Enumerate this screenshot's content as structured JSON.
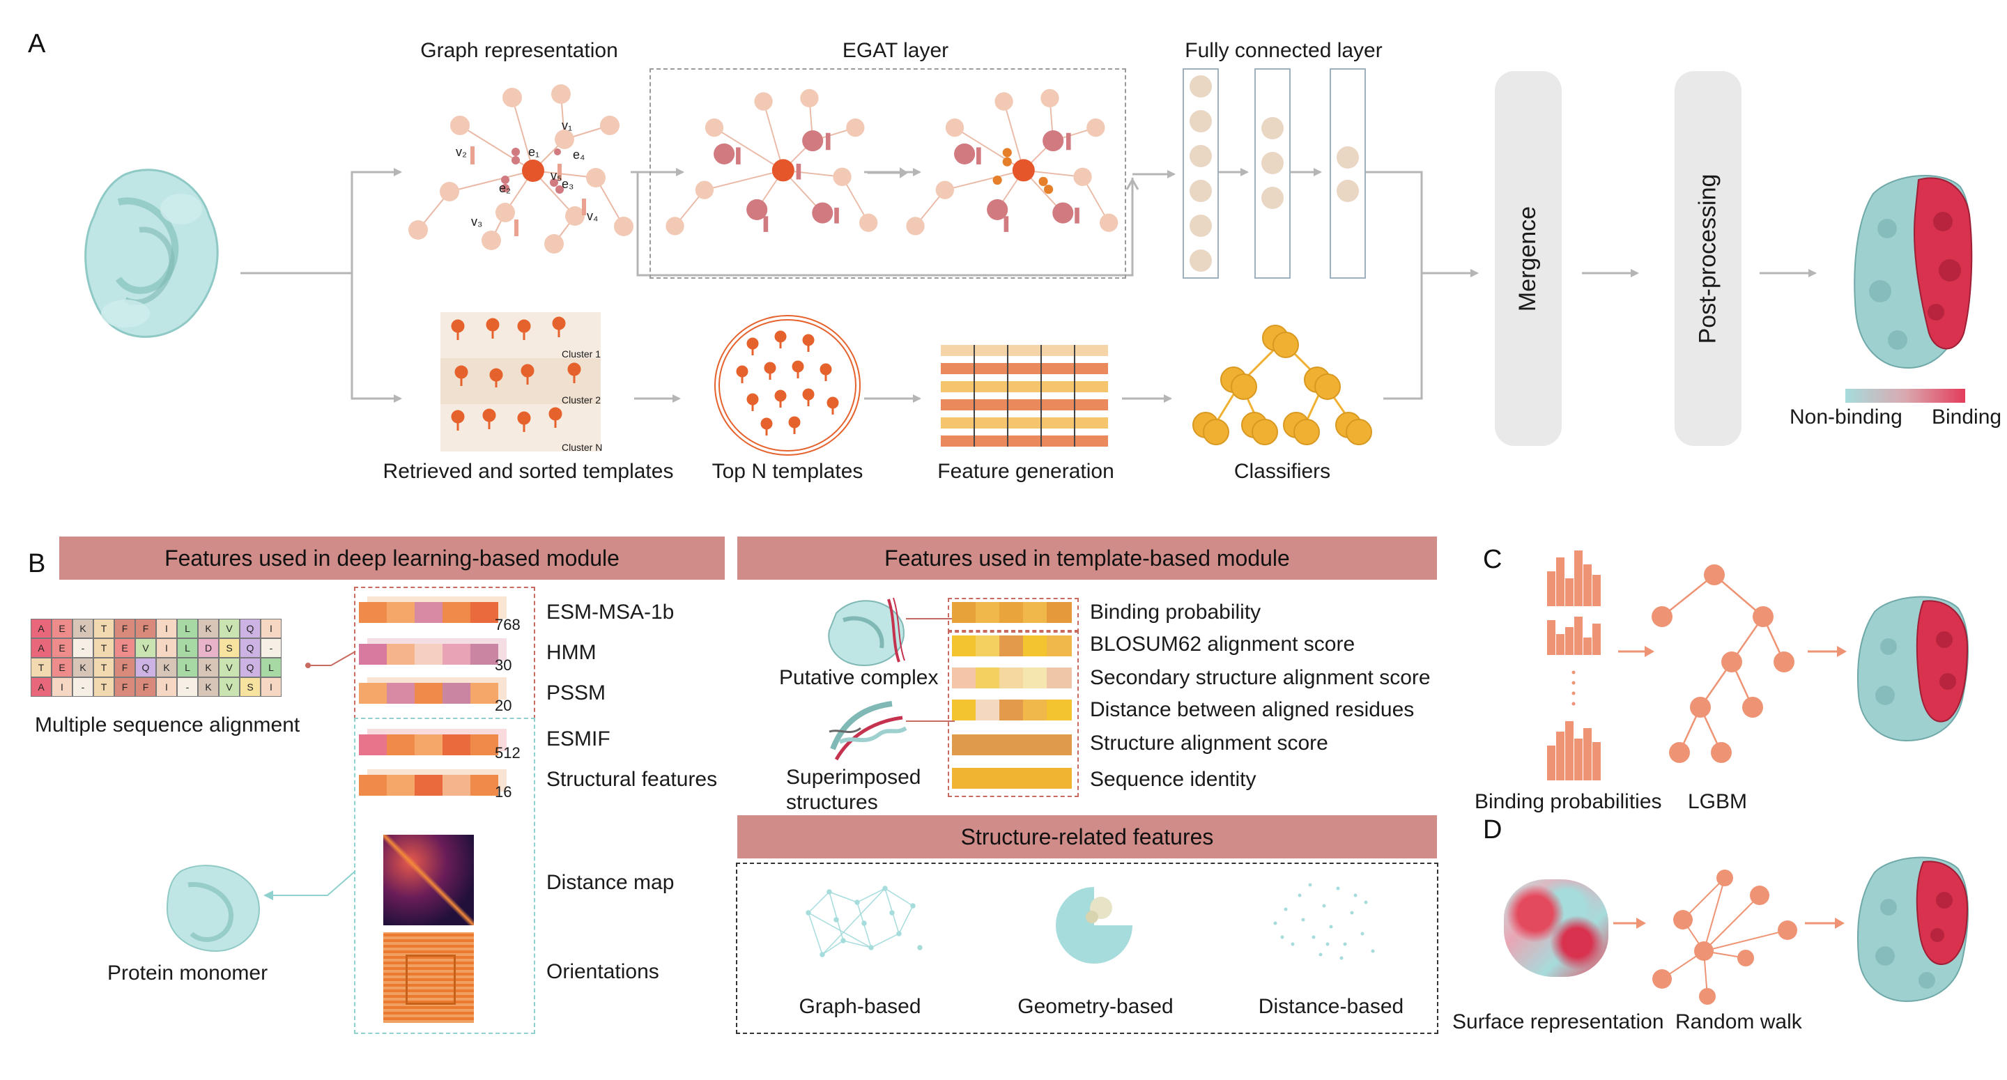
{
  "panels": {
    "a": "A",
    "b": "B",
    "c": "C",
    "d": "D"
  },
  "panel_a": {
    "graph_representation": "Graph representation",
    "egat_layer": "EGAT layer",
    "fully_connected_layer": "Fully connected layer",
    "mergence": "Mergence",
    "post_processing": "Post-processing",
    "retrieved_templates": "Retrieved and sorted templates",
    "top_n_templates": "Top N templates",
    "feature_generation": "Feature generation",
    "classifiers": "Classifiers",
    "non_binding": "Non-binding",
    "binding": "Binding",
    "cluster_1": "Cluster 1",
    "cluster_2": "Cluster 2",
    "cluster_n": "Cluster N",
    "node_labels": [
      "v₁",
      "v₂",
      "v₃",
      "v₄",
      "v₅",
      "e₁",
      "e₂",
      "e₃",
      "e₄",
      "v₆"
    ]
  },
  "panel_b": {
    "banner_dl": "Features used in deep learning-based module",
    "banner_template": "Features used in template-based module",
    "banner_structure": "Structure-related features",
    "msa_label": "Multiple sequence alignment",
    "protein_monomer": "Protein monomer",
    "putative_complex": "Putative complex",
    "superimposed": "Superimposed\nstructures",
    "dl_features": [
      {
        "name": "ESM-MSA-1b",
        "dim": "768"
      },
      {
        "name": "HMM",
        "dim": "30"
      },
      {
        "name": "PSSM",
        "dim": "20"
      },
      {
        "name": "ESMIF",
        "dim": "512"
      },
      {
        "name": "Structural features",
        "dim": "16"
      },
      {
        "name": "Distance map",
        "dim": ""
      },
      {
        "name": "Orientations",
        "dim": ""
      }
    ],
    "template_features": [
      "Binding probability",
      "BLOSUM62 alignment score",
      "Secondary structure alignment score",
      "Distance between aligned residues",
      "Structure alignment score",
      "Sequence identity"
    ],
    "structure_features": [
      "Graph-based",
      "Geometry-based",
      "Distance-based"
    ],
    "msa_rows": [
      [
        "A",
        "E",
        "K",
        "T",
        "F",
        "F",
        "I",
        "L",
        "K",
        "V",
        "Q",
        "I"
      ],
      [
        "A",
        "E",
        "-",
        "T",
        "E",
        "V",
        "I",
        "L",
        "D",
        "S",
        "Q",
        "-"
      ],
      [
        "T",
        "E",
        "K",
        "T",
        "F",
        "Q",
        "K",
        "L",
        "K",
        "V",
        "Q",
        "L"
      ],
      [
        "A",
        "I",
        "-",
        "T",
        "F",
        "F",
        "I",
        "-",
        "K",
        "V",
        "S",
        "I"
      ]
    ]
  },
  "panel_c": {
    "binding_probabilities": "Binding probabilities",
    "lgbm": "LGBM"
  },
  "panel_d": {
    "surface_representation": "Surface representation",
    "random_walk": "Random walk"
  },
  "colors": {
    "banner": "#cf8c88",
    "node_light": "#f2c9b4",
    "node_mid": "#d17b80",
    "node_dark": "#e5572a",
    "template_orange": "#e5622d",
    "classifier_yellow": "#f0b132",
    "protein_teal": "#a6dcdc",
    "binding_red": "#d8324f",
    "lgbm_node": "#ee9373"
  }
}
